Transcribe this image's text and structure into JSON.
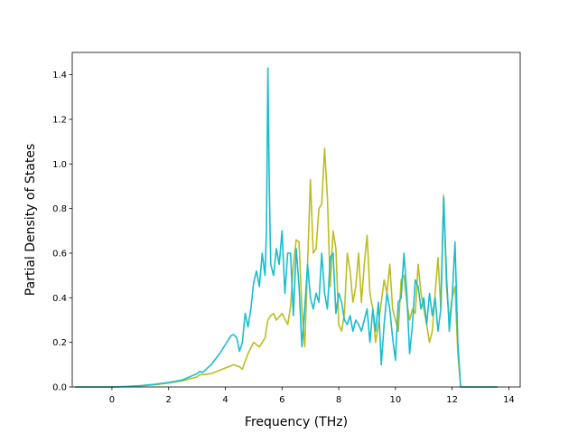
{
  "chart_data": {
    "type": "line",
    "title": "",
    "xlabel": "Frequency (THz)",
    "ylabel": "Partial Density of States",
    "xlim": [
      -1.4,
      14.4
    ],
    "ylim": [
      0.0,
      1.5
    ],
    "xticks": [
      0,
      2,
      4,
      6,
      8,
      10,
      12,
      14
    ],
    "yticks": [
      0.0,
      0.2,
      0.4,
      0.6,
      0.8,
      1.0,
      1.2,
      1.4
    ],
    "xtick_labels": [
      "0",
      "2",
      "4",
      "6",
      "8",
      "10",
      "12",
      "14"
    ],
    "ytick_labels": [
      "0.0",
      "0.2",
      "0.4",
      "0.6",
      "0.8",
      "1.0",
      "1.2",
      "1.4"
    ],
    "grid": false,
    "legend": "none",
    "series": [
      {
        "color": "#bcbd22",
        "x": [
          -1.3,
          0.0,
          0.5,
          1.0,
          1.5,
          2.0,
          2.5,
          3.0,
          3.1,
          3.2,
          3.5,
          4.0,
          4.3,
          4.5,
          4.6,
          4.8,
          5.0,
          5.2,
          5.4,
          5.5,
          5.6,
          5.7,
          5.8,
          6.0,
          6.2,
          6.3,
          6.4,
          6.5,
          6.6,
          6.7,
          6.8,
          6.9,
          7.0,
          7.1,
          7.2,
          7.3,
          7.4,
          7.5,
          7.6,
          7.7,
          7.8,
          7.9,
          8.0,
          8.1,
          8.2,
          8.3,
          8.4,
          8.5,
          8.6,
          8.7,
          8.8,
          8.9,
          9.0,
          9.1,
          9.2,
          9.3,
          9.4,
          9.5,
          9.6,
          9.7,
          9.8,
          9.9,
          10.0,
          10.1,
          10.2,
          10.3,
          10.4,
          10.5,
          10.6,
          10.7,
          10.8,
          10.9,
          11.0,
          11.1,
          11.2,
          11.3,
          11.4,
          11.5,
          11.6,
          11.7,
          11.8,
          11.9,
          12.0,
          12.1,
          12.2,
          12.3,
          12.4,
          12.6,
          13.0,
          13.6
        ],
        "y": [
          0.0,
          0.0,
          0.002,
          0.005,
          0.01,
          0.018,
          0.028,
          0.045,
          0.055,
          0.055,
          0.06,
          0.085,
          0.1,
          0.09,
          0.08,
          0.15,
          0.2,
          0.18,
          0.22,
          0.3,
          0.32,
          0.33,
          0.3,
          0.33,
          0.28,
          0.36,
          0.55,
          0.66,
          0.65,
          0.35,
          0.18,
          0.55,
          0.93,
          0.6,
          0.62,
          0.8,
          0.82,
          1.07,
          0.85,
          0.45,
          0.7,
          0.62,
          0.28,
          0.25,
          0.33,
          0.6,
          0.52,
          0.38,
          0.45,
          0.6,
          0.38,
          0.55,
          0.68,
          0.42,
          0.35,
          0.2,
          0.28,
          0.38,
          0.48,
          0.42,
          0.55,
          0.35,
          0.3,
          0.25,
          0.48,
          0.5,
          0.38,
          0.3,
          0.35,
          0.33,
          0.55,
          0.42,
          0.35,
          0.28,
          0.2,
          0.25,
          0.42,
          0.58,
          0.35,
          0.86,
          0.45,
          0.3,
          0.4,
          0.45,
          0.15,
          0.0,
          0.0,
          0.0,
          0.0,
          0.0
        ]
      },
      {
        "color": "#17becf",
        "x": [
          -1.3,
          0.0,
          0.5,
          1.0,
          1.5,
          2.0,
          2.5,
          3.0,
          3.1,
          3.2,
          3.5,
          3.8,
          4.0,
          4.2,
          4.3,
          4.4,
          4.5,
          4.6,
          4.7,
          4.8,
          4.9,
          5.0,
          5.1,
          5.2,
          5.3,
          5.4,
          5.45,
          5.5,
          5.55,
          5.6,
          5.7,
          5.8,
          5.9,
          6.0,
          6.1,
          6.2,
          6.3,
          6.4,
          6.5,
          6.6,
          6.7,
          6.8,
          6.9,
          7.0,
          7.1,
          7.2,
          7.3,
          7.4,
          7.5,
          7.6,
          7.7,
          7.8,
          7.9,
          8.0,
          8.1,
          8.2,
          8.3,
          8.4,
          8.5,
          8.6,
          8.7,
          8.8,
          8.9,
          9.0,
          9.1,
          9.2,
          9.3,
          9.4,
          9.5,
          9.6,
          9.7,
          9.8,
          9.9,
          10.0,
          10.1,
          10.2,
          10.3,
          10.4,
          10.5,
          10.6,
          10.7,
          10.8,
          10.9,
          11.0,
          11.1,
          11.2,
          11.3,
          11.4,
          11.5,
          11.6,
          11.7,
          11.8,
          11.9,
          12.0,
          12.1,
          12.2,
          12.3,
          12.4,
          12.6,
          13.0,
          13.6
        ],
        "y": [
          0.0,
          0.0,
          0.002,
          0.006,
          0.012,
          0.02,
          0.032,
          0.06,
          0.07,
          0.065,
          0.1,
          0.15,
          0.19,
          0.23,
          0.235,
          0.22,
          0.16,
          0.2,
          0.33,
          0.27,
          0.35,
          0.47,
          0.52,
          0.45,
          0.6,
          0.5,
          0.7,
          1.43,
          0.9,
          0.55,
          0.5,
          0.62,
          0.55,
          0.7,
          0.42,
          0.6,
          0.6,
          0.32,
          0.62,
          0.45,
          0.18,
          0.35,
          0.55,
          0.4,
          0.35,
          0.42,
          0.38,
          0.6,
          0.42,
          0.35,
          0.58,
          0.6,
          0.33,
          0.42,
          0.38,
          0.3,
          0.28,
          0.32,
          0.25,
          0.3,
          0.28,
          0.25,
          0.3,
          0.35,
          0.2,
          0.35,
          0.25,
          0.38,
          0.1,
          0.28,
          0.42,
          0.35,
          0.22,
          0.12,
          0.38,
          0.4,
          0.6,
          0.42,
          0.15,
          0.28,
          0.48,
          0.45,
          0.35,
          0.4,
          0.28,
          0.42,
          0.32,
          0.4,
          0.25,
          0.35,
          0.85,
          0.5,
          0.25,
          0.4,
          0.65,
          0.2,
          0.0,
          0.0,
          0.0,
          0.0,
          0.0
        ]
      }
    ]
  }
}
